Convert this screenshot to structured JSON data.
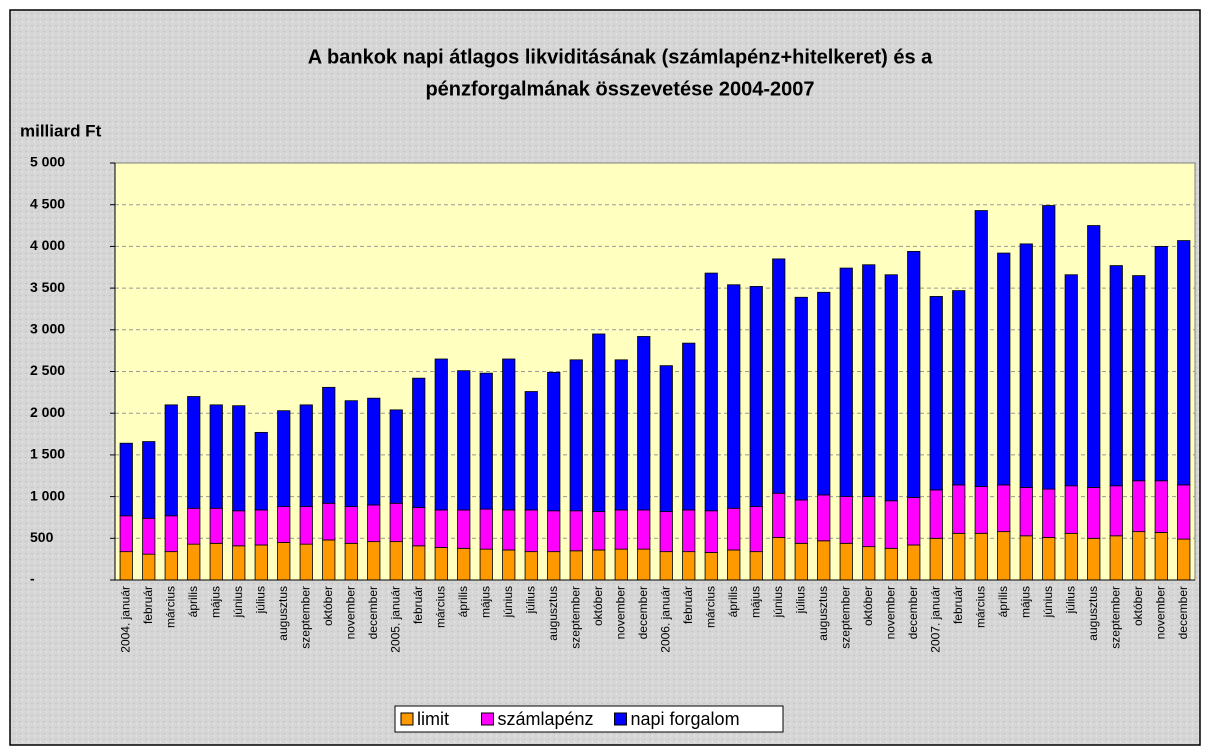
{
  "chart_data": {
    "type": "stacked_bar",
    "title": [
      "A bankok napi átlagos likviditásának (számlapénz+hitelkeret) és a",
      "pénzforgalmának összevetése 2004-2007"
    ],
    "y_label": "milliard Ft",
    "categories": [
      "2004. január",
      "február",
      "március",
      "április",
      "május",
      "június",
      "július",
      "augusztus",
      "szeptember",
      "október",
      "november",
      "december",
      "2005. január",
      "február",
      "március",
      "április",
      "május",
      "június",
      "július",
      "augusztus",
      "szeptember",
      "október",
      "november",
      "december",
      "2006. január",
      "február",
      "március",
      "április",
      "május",
      "június",
      "július",
      "augusztus",
      "szeptember",
      "október",
      "november",
      "december",
      "2007. január",
      "február",
      "március",
      "április",
      "május",
      "június",
      "július",
      "augusztus",
      "szeptember",
      "október",
      "november",
      "december"
    ],
    "series": [
      {
        "name": "limit",
        "color": "#ff9900",
        "values": [
          340,
          310,
          340,
          430,
          440,
          410,
          420,
          450,
          430,
          480,
          440,
          460,
          460,
          410,
          390,
          380,
          370,
          360,
          340,
          340,
          350,
          360,
          370,
          370,
          340,
          340,
          330,
          360,
          340,
          510,
          440,
          470,
          440,
          400,
          380,
          420,
          500,
          560,
          560,
          580,
          530,
          510,
          560,
          500,
          530,
          580,
          570,
          490
        ]
      },
      {
        "name": "számlapénz",
        "color": "#ff00ff",
        "values": [
          430,
          430,
          430,
          430,
          420,
          420,
          420,
          430,
          450,
          440,
          440,
          440,
          460,
          460,
          450,
          460,
          480,
          480,
          500,
          490,
          480,
          460,
          470,
          470,
          480,
          500,
          500,
          500,
          540,
          530,
          520,
          550,
          560,
          600,
          570,
          570,
          580,
          580,
          560,
          560,
          580,
          580,
          570,
          610,
          600,
          610,
          620,
          650
        ]
      },
      {
        "name": "napi forgalom",
        "color": "#0000ff",
        "values": [
          870,
          920,
          1330,
          1340,
          1240,
          1260,
          930,
          1150,
          1220,
          1390,
          1270,
          1280,
          1120,
          1550,
          1810,
          1670,
          1630,
          1810,
          1420,
          1660,
          1810,
          2130,
          1800,
          2080,
          1750,
          2000,
          2850,
          2680,
          2640,
          2810,
          2430,
          2430,
          2740,
          2780,
          2710,
          2950,
          2320,
          2330,
          3310,
          2780,
          2920,
          3400,
          2530,
          3140,
          2640,
          2460,
          2810,
          2930
        ]
      }
    ],
    "ylim": [
      0,
      5000
    ],
    "yticks": [
      {
        "value": 0,
        "label": "-"
      },
      500,
      {
        "value": 1000,
        "label": "1 000"
      },
      {
        "value": 1500,
        "label": "1 500"
      },
      {
        "value": 2000,
        "label": "2 000"
      },
      {
        "value": 2500,
        "label": "2 500"
      },
      {
        "value": 3000,
        "label": "3 000"
      },
      {
        "value": 3500,
        "label": "3 500"
      },
      {
        "value": 4000,
        "label": "4 000"
      },
      {
        "value": 4500,
        "label": "4 500"
      },
      {
        "value": 5000,
        "label": "5 000"
      }
    ],
    "grid": true,
    "legend": "bottom"
  }
}
